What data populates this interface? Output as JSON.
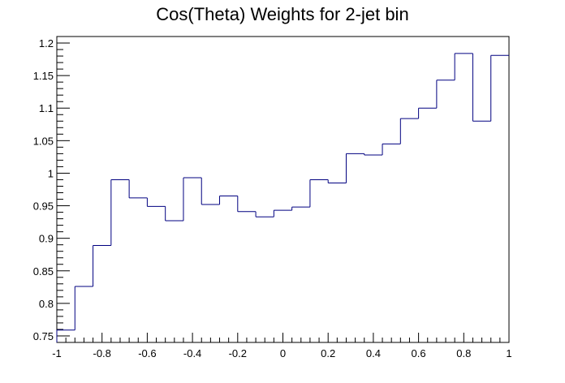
{
  "chart_data": {
    "type": "histogram",
    "title": "Cos(Theta) Weights for 2-jet bin",
    "xlabel": "",
    "ylabel": "",
    "xlim": [
      -1,
      1
    ],
    "ylim": [
      0.74,
      1.21
    ],
    "grid": false,
    "line_color": "#000080",
    "x_ticks": [
      -1,
      -0.8,
      -0.6,
      -0.4,
      -0.2,
      0,
      0.2,
      0.4,
      0.6,
      0.8,
      1
    ],
    "x_tick_labels": [
      "-1",
      "-0.8",
      "-0.6",
      "-0.4",
      "-0.2",
      "0",
      "0.2",
      "0.4",
      "0.6",
      "0.8",
      "1"
    ],
    "y_ticks": [
      0.75,
      0.8,
      0.85,
      0.9,
      0.95,
      1,
      1.05,
      1.1,
      1.15,
      1.2
    ],
    "y_tick_labels": [
      "0.75",
      "0.8",
      "0.85",
      "0.9",
      "0.95",
      "1",
      "1.05",
      "1.1",
      "1.15",
      "1.2"
    ],
    "bin_edges": [
      -1,
      -0.92,
      -0.84,
      -0.76,
      -0.68,
      -0.6,
      -0.52,
      -0.44,
      -0.36,
      -0.28,
      -0.2,
      -0.12,
      -0.04,
      0.04,
      0.12,
      0.2,
      0.28,
      0.36,
      0.44,
      0.52,
      0.6,
      0.68,
      0.76,
      0.84,
      0.92,
      1
    ],
    "values": [
      0.759,
      0.826,
      0.889,
      0.99,
      0.962,
      0.949,
      0.927,
      0.993,
      0.952,
      0.965,
      0.941,
      0.933,
      0.943,
      0.948,
      0.99,
      0.985,
      1.03,
      1.028,
      1.045,
      1.084,
      1.1,
      1.143,
      1.184,
      1.08,
      1.181
    ]
  }
}
